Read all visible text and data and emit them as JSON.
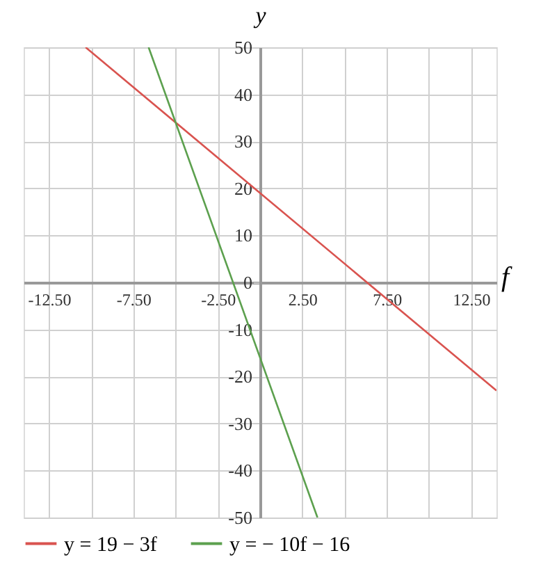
{
  "chart_data": {
    "type": "line",
    "xlabel": "f",
    "ylabel": "y",
    "xlim": [
      -14,
      14
    ],
    "ylim": [
      -50,
      50
    ],
    "xticks": [
      {
        "value": -12.5,
        "label": "-12.50"
      },
      {
        "value": -10,
        "label": null
      },
      {
        "value": -7.5,
        "label": "-7.50"
      },
      {
        "value": -5,
        "label": null
      },
      {
        "value": -2.5,
        "label": "-2.50"
      },
      {
        "value": 0,
        "label": null
      },
      {
        "value": 2.5,
        "label": "2.50"
      },
      {
        "value": 5,
        "label": null
      },
      {
        "value": 7.5,
        "label": "7.50"
      },
      {
        "value": 10,
        "label": null
      },
      {
        "value": 12.5,
        "label": "12.50"
      }
    ],
    "yticks": [
      -50,
      -40,
      -30,
      -20,
      -10,
      0,
      10,
      20,
      30,
      40,
      50
    ],
    "grid": true,
    "legend": "bottom left",
    "marker": "none",
    "line_style": "solid",
    "series": [
      {
        "name": "y = 19 − 3f",
        "color": "#d9534f",
        "x": [
          -10.33,
          14
        ],
        "values": [
          50,
          -23
        ]
      },
      {
        "name": "y = − 10f − 16",
        "color": "#5ca04e",
        "x": [
          -6.6,
          3.4
        ],
        "values": [
          50,
          -50
        ]
      }
    ]
  }
}
